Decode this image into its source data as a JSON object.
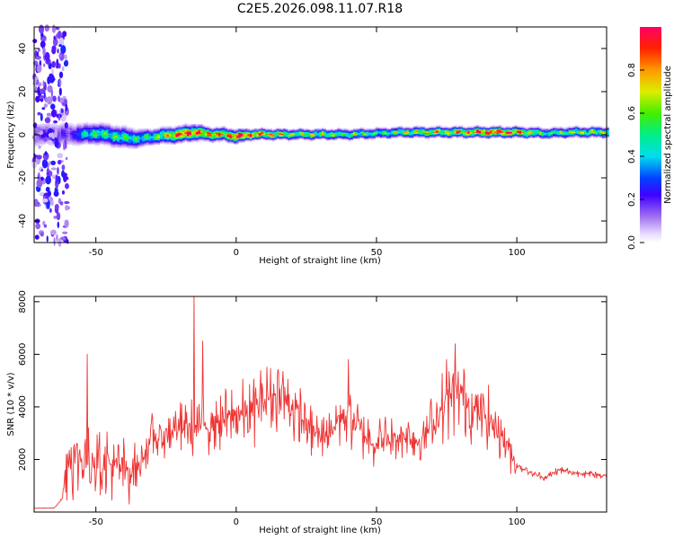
{
  "title": "C2E5.2026.098.11.07.R18",
  "chart_data": [
    {
      "type": "heatmap",
      "xlabel": "Height of straight line (km)",
      "ylabel": "Frequency (Hz)",
      "xlim": [
        -72,
        132
      ],
      "ylim": [
        -50,
        50
      ],
      "xticks": [
        -50,
        0,
        50,
        100
      ],
      "yticks": [
        -40,
        -20,
        0,
        20,
        40
      ],
      "colorbar": {
        "label": "Normalized spectral amplitude",
        "range": [
          0,
          1
        ],
        "ticks": [
          "0.0",
          "0.2",
          "0.4",
          "0.6",
          "0.8"
        ]
      },
      "track": {
        "x": [
          -60,
          -55,
          -50,
          -45,
          -40,
          -35,
          -30,
          -25,
          -20,
          -15,
          -10,
          -5,
          0,
          5,
          10,
          20,
          30,
          40,
          50,
          60,
          70,
          80,
          90,
          100,
          110,
          120,
          130
        ],
        "center_hz": [
          0,
          0,
          0.5,
          -0.5,
          -1.5,
          -2,
          -1,
          -0.5,
          0,
          1,
          0,
          0,
          -1,
          0,
          0,
          0,
          0,
          0,
          0.5,
          1,
          1,
          1,
          1,
          1,
          0.5,
          1,
          1
        ],
        "half_width_hz": [
          5,
          4,
          4,
          4,
          4,
          3.5,
          3,
          3,
          3,
          3,
          2.5,
          2.5,
          2.5,
          2,
          2,
          2,
          2,
          2,
          2,
          2,
          2,
          2,
          2,
          2,
          2,
          2,
          2
        ],
        "amplitude": [
          0.3,
          0.4,
          0.5,
          0.5,
          0.5,
          0.45,
          0.5,
          0.7,
          0.9,
          0.85,
          0.8,
          0.75,
          0.95,
          0.85,
          0.8,
          0.6,
          0.6,
          0.55,
          0.5,
          0.6,
          0.7,
          0.75,
          0.95,
          0.8,
          0.5,
          0.6,
          0.6
        ]
      }
    },
    {
      "type": "line",
      "xlabel": "Height of straight line (km)",
      "ylabel": "SNR (10 * v/v)",
      "xlim": [
        -72,
        132
      ],
      "ylim": [
        0,
        8200
      ],
      "xticks": [
        -50,
        0,
        50,
        100
      ],
      "yticks": [
        2000,
        4000,
        6000,
        8000
      ],
      "color": "#ee3333",
      "envelope": {
        "x": [
          -72,
          -65,
          -62,
          -60,
          -55,
          -50,
          -45,
          -40,
          -35,
          -30,
          -25,
          -20,
          -15,
          -10,
          -5,
          0,
          5,
          10,
          15,
          20,
          25,
          30,
          35,
          40,
          45,
          50,
          55,
          60,
          65,
          70,
          75,
          80,
          85,
          90,
          95,
          100,
          105,
          110,
          115,
          120,
          125,
          130,
          132
        ],
        "y": [
          150,
          150,
          500,
          2200,
          2000,
          2200,
          1800,
          1600,
          1700,
          2800,
          3000,
          3200,
          3200,
          3400,
          3500,
          3700,
          3800,
          4300,
          4500,
          4000,
          3300,
          2800,
          3400,
          3800,
          3000,
          2600,
          2800,
          2900,
          2700,
          3300,
          4200,
          4600,
          3800,
          3600,
          2900,
          1800,
          1500,
          1300,
          1600,
          1500,
          1450,
          1400,
          1400
        ]
      },
      "peaks": [
        {
          "x": -53,
          "y": 6000
        },
        {
          "x": -15,
          "y": 8200
        },
        {
          "x": -12,
          "y": 6500
        },
        {
          "x": 40,
          "y": 5800
        },
        {
          "x": 78,
          "y": 6400
        },
        {
          "x": 75,
          "y": 5800
        }
      ]
    }
  ]
}
